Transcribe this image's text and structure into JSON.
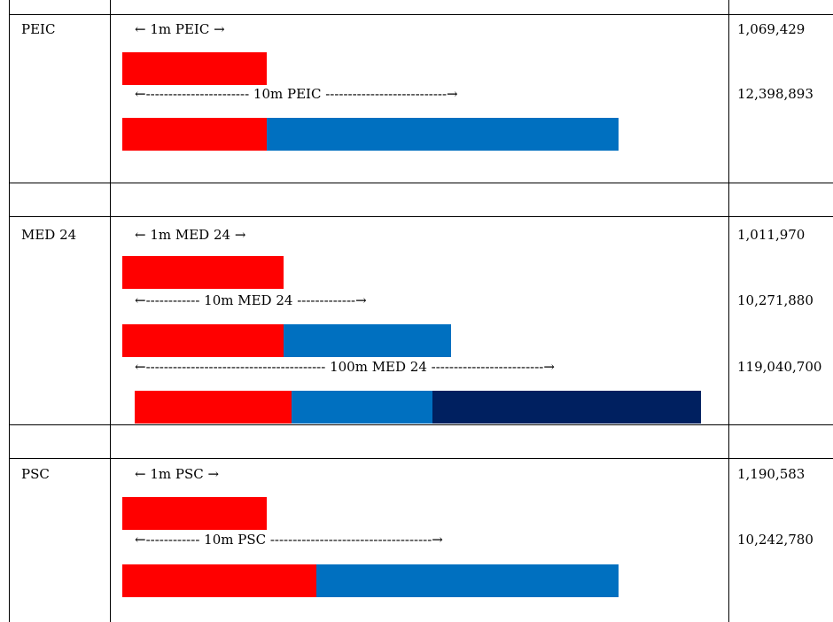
{
  "colors": {
    "red": "#ff0000",
    "blue": "#0070c0",
    "navy": "#002060"
  },
  "rows": [
    {
      "label": "PEIC",
      "items": [
        {
          "caption": "← 1m PEIC →",
          "value": "1,069,429"
        },
        {
          "caption": "←----------------------- 10m PEIC ---------------------------→",
          "value": "12,398,893"
        }
      ]
    },
    {
      "label": "MED 24",
      "items": [
        {
          "caption": "← 1m MED 24 →",
          "value": "1,011,970"
        },
        {
          "caption": "←------------ 10m MED 24 -------------→",
          "value": "10,271,880"
        },
        {
          "caption": "←---------------------------------------- 100m MED 24 -------------------------→",
          "value": "119,040,700"
        }
      ]
    },
    {
      "label": "PSC",
      "items": [
        {
          "caption": "← 1m PSC →",
          "value": "1,190,583"
        },
        {
          "caption": "←------------ 10m PSC ------------------------------------→",
          "value": "10,242,780"
        }
      ]
    }
  ]
}
